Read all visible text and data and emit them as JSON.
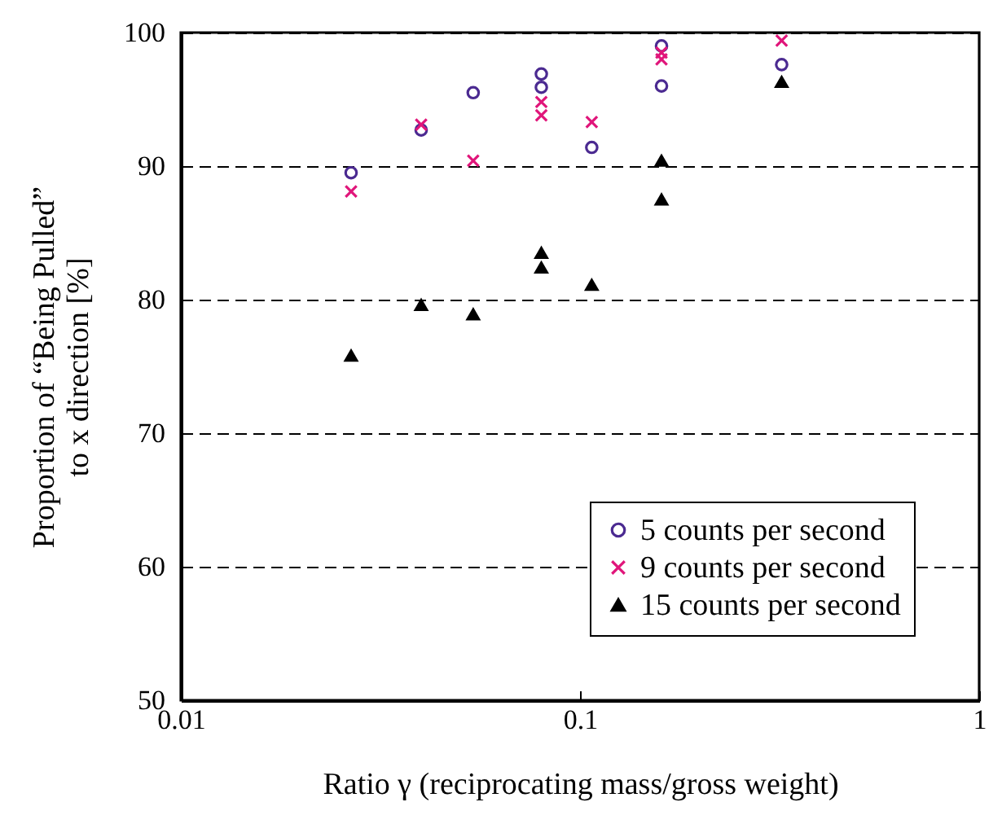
{
  "chart_data": {
    "type": "scatter",
    "xlabel": "Ratio γ (reciprocating mass/gross weight)",
    "ylabel": "Proportion of  “Being Pulled”\nto x direction [%]",
    "log": "x",
    "xlim": [
      0.01,
      1
    ],
    "xticks": [
      0.01,
      0.1,
      1
    ],
    "ylim": [
      50,
      100
    ],
    "yticks": [
      50,
      60,
      70,
      80,
      90,
      100
    ],
    "grid": "y",
    "legend": "bottom right",
    "series": [
      {
        "name": "5 counts per second",
        "color": "#4b2a91",
        "marker": "circle",
        "x": [
          0.0267,
          0.04,
          0.054,
          0.08,
          0.08,
          0.107,
          0.16,
          0.16,
          0.32
        ],
        "values": [
          89.5,
          92.7,
          95.5,
          96.9,
          95.9,
          91.4,
          99.0,
          96.0,
          97.6
        ]
      },
      {
        "name": "9 counts per second",
        "color": "#e0157a",
        "marker": "cross",
        "x": [
          0.0267,
          0.04,
          0.054,
          0.08,
          0.08,
          0.107,
          0.16,
          0.16,
          0.32
        ],
        "values": [
          88.1,
          93.1,
          90.4,
          94.8,
          93.8,
          93.3,
          98.5,
          98.0,
          99.4
        ]
      },
      {
        "name": "15 counts per second",
        "color": "#000000",
        "marker": "triangle",
        "x": [
          0.0267,
          0.04,
          0.054,
          0.08,
          0.08,
          0.107,
          0.16,
          0.16,
          0.32
        ],
        "values": [
          75.8,
          79.6,
          78.9,
          83.5,
          82.4,
          81.1,
          90.4,
          87.5,
          96.3
        ]
      }
    ]
  }
}
